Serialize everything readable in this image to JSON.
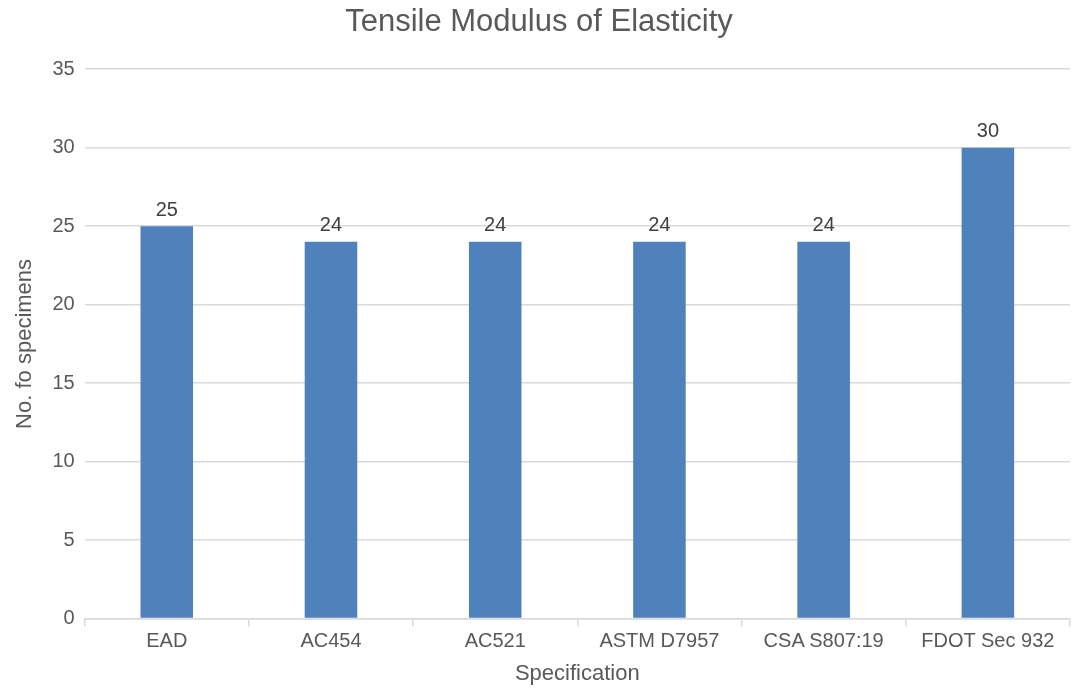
{
  "chart_data": {
    "type": "bar",
    "title": "Tensile Modulus of Elasticity",
    "xlabel": "Specification",
    "ylabel": "No. fo specimens",
    "categories": [
      "EAD",
      "AC454",
      "AC521",
      "ASTM D7957",
      "CSA S807:19",
      "FDOT Sec 932"
    ],
    "values": [
      25,
      24,
      24,
      24,
      24,
      30
    ],
    "color": "#4f81bd",
    "ylim": [
      0,
      35
    ],
    "yticks": [
      0,
      5,
      10,
      15,
      20,
      25,
      30,
      35
    ],
    "grid": "y",
    "data_labels": true,
    "legend": false
  }
}
